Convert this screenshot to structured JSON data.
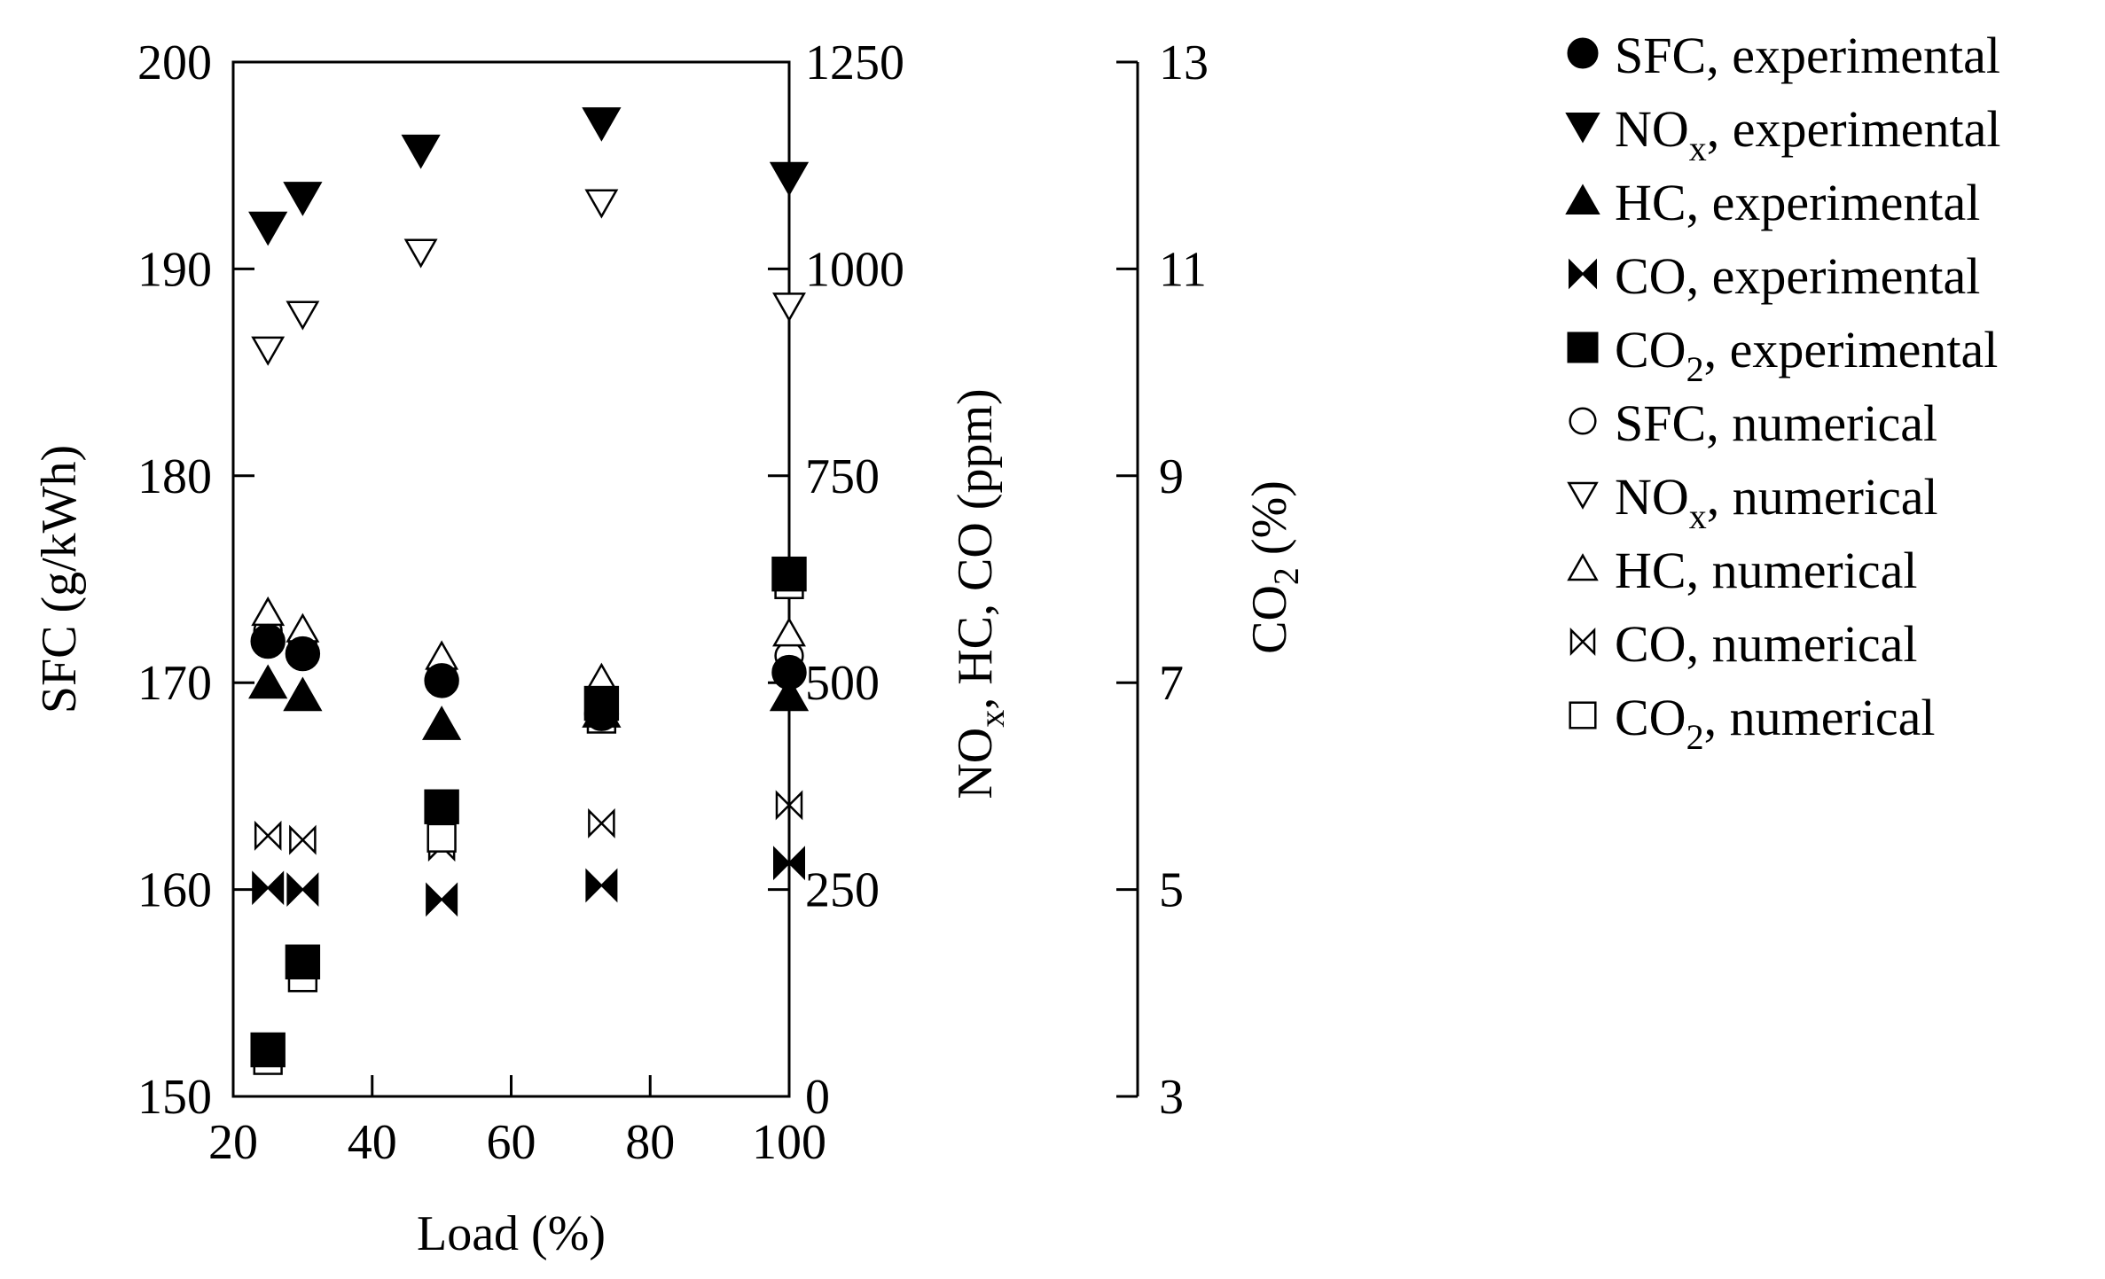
{
  "chart_data": {
    "type": "scatter",
    "title": "",
    "xlabel": "Load (%)",
    "xlim": [
      20,
      100
    ],
    "xticks": [
      "20",
      "40",
      "60",
      "80",
      "100"
    ],
    "ylabel_left": "SFC (g/kWh)",
    "ylim_left": [
      150,
      200
    ],
    "yticks_left": [
      "150",
      "160",
      "170",
      "180",
      "190",
      "200"
    ],
    "ylabel_mid": {
      "base": "NO",
      "sub": "x",
      "rest": ", HC, CO (ppm)"
    },
    "ylim_mid": [
      0,
      1250
    ],
    "yticks_mid": [
      "0",
      "250",
      "500",
      "750",
      "1000",
      "1250"
    ],
    "ylabel_right": {
      "base": "CO",
      "sub": "2",
      "rest": " (%)"
    },
    "ylim_right": [
      3,
      13
    ],
    "yticks_right": [
      "3",
      "5",
      "7",
      "9",
      "11",
      "13"
    ],
    "grid": false,
    "legend_position": "right",
    "series": [
      {
        "name": "SFC, experimental",
        "label_base": "SFC",
        "label_sub": "",
        "label_rest": ", experimental",
        "marker": "circle",
        "filled": true,
        "axis": "left",
        "x": [
          25,
          30,
          50,
          73,
          100
        ],
        "y": [
          172,
          171.4,
          170.1,
          168.5,
          170.5
        ]
      },
      {
        "name": "NOx, experimental",
        "label_base": "NO",
        "label_sub": "x",
        "label_rest": ", experimental",
        "marker": "triangle-down",
        "filled": true,
        "axis": "mid",
        "x": [
          25,
          30,
          47,
          73,
          100
        ],
        "y": [
          1050,
          1086,
          1143,
          1176,
          1110
        ]
      },
      {
        "name": "HC, experimental",
        "label_base": "HC",
        "label_sub": "",
        "label_rest": ", experimental",
        "marker": "triangle-up",
        "filled": true,
        "axis": "mid",
        "x": [
          25,
          30,
          50,
          73,
          100
        ],
        "y": [
          500,
          485,
          450,
          465,
          485
        ]
      },
      {
        "name": "CO, experimental",
        "label_base": "CO",
        "label_sub": "",
        "label_rest": ", experimental",
        "marker": "bowtie",
        "filled": true,
        "axis": "mid",
        "x": [
          25,
          30,
          50,
          73,
          100
        ],
        "y": [
          252,
          250,
          238,
          255,
          282
        ]
      },
      {
        "name": "CO2, experimental",
        "label_base": "CO",
        "label_sub": "2",
        "label_rest": ", experimental",
        "marker": "square",
        "filled": true,
        "axis": "right",
        "x": [
          25,
          30,
          50,
          73,
          100
        ],
        "y": [
          3.45,
          4.3,
          5.8,
          6.8,
          8.05
        ]
      },
      {
        "name": "SFC, numerical",
        "label_base": "SFC",
        "label_sub": "",
        "label_rest": ", numerical",
        "marker": "circle",
        "filled": false,
        "axis": "left",
        "x": [
          25,
          30,
          50,
          73,
          100
        ],
        "y": [
          172.5,
          171.8,
          170.6,
          169,
          171.3
        ]
      },
      {
        "name": "NOx, numerical",
        "label_base": "NO",
        "label_sub": "x",
        "label_rest": ", numerical",
        "marker": "triangle-down",
        "filled": false,
        "axis": "mid",
        "x": [
          25,
          30,
          47,
          73,
          100
        ],
        "y": [
          902,
          945,
          1020,
          1080,
          955
        ]
      },
      {
        "name": "HC, numerical",
        "label_base": "HC",
        "label_sub": "",
        "label_rest": ", numerical",
        "marker": "triangle-up",
        "filled": false,
        "axis": "mid",
        "x": [
          25,
          30,
          50,
          73,
          100
        ],
        "y": [
          585,
          565,
          532,
          505,
          560
        ]
      },
      {
        "name": "CO, numerical",
        "label_base": "CO",
        "label_sub": "",
        "label_rest": ", numerical",
        "marker": "bowtie",
        "filled": false,
        "axis": "mid",
        "x": [
          25,
          30,
          50,
          73,
          100
        ],
        "y": [
          315,
          310,
          302,
          330,
          352
        ]
      },
      {
        "name": "CO2, numerical",
        "label_base": "CO",
        "label_sub": "2",
        "label_rest": ", numerical",
        "marker": "square",
        "filled": false,
        "axis": "right",
        "x": [
          25,
          30,
          50,
          73,
          100
        ],
        "y": [
          3.35,
          4.15,
          5.5,
          6.65,
          7.95
        ]
      }
    ]
  }
}
